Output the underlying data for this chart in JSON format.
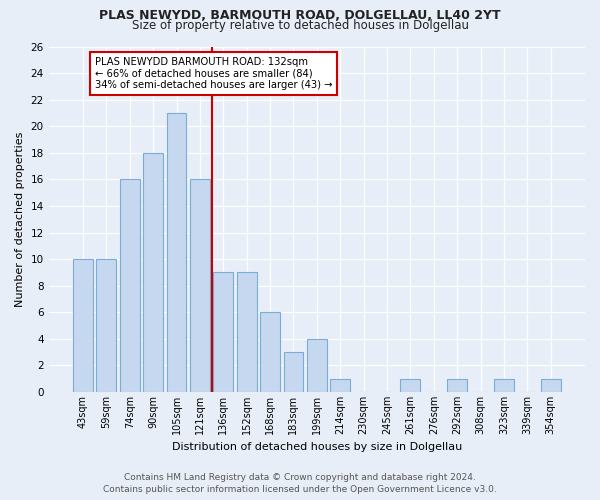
{
  "title1": "PLAS NEWYDD, BARMOUTH ROAD, DOLGELLAU, LL40 2YT",
  "title2": "Size of property relative to detached houses in Dolgellau",
  "xlabel": "Distribution of detached houses by size in Dolgellau",
  "ylabel": "Number of detached properties",
  "categories": [
    "43sqm",
    "59sqm",
    "74sqm",
    "90sqm",
    "105sqm",
    "121sqm",
    "136sqm",
    "152sqm",
    "168sqm",
    "183sqm",
    "199sqm",
    "214sqm",
    "230sqm",
    "245sqm",
    "261sqm",
    "276sqm",
    "292sqm",
    "308sqm",
    "323sqm",
    "339sqm",
    "354sqm"
  ],
  "values": [
    10,
    10,
    16,
    18,
    21,
    16,
    9,
    9,
    6,
    3,
    4,
    1,
    0,
    0,
    1,
    0,
    1,
    0,
    1,
    0,
    1
  ],
  "bar_color": "#c5d8f0",
  "bar_edge_color": "#7aadd4",
  "vline_x": 5.5,
  "vline_color": "#cc0000",
  "annotation_title": "PLAS NEWYDD BARMOUTH ROAD: 132sqm",
  "annotation_line2": "← 66% of detached houses are smaller (84)",
  "annotation_line3": "34% of semi-detached houses are larger (43) →",
  "annotation_box_color": "#ffffff",
  "annotation_border_color": "#cc0000",
  "ylim": [
    0,
    26
  ],
  "yticks": [
    0,
    2,
    4,
    6,
    8,
    10,
    12,
    14,
    16,
    18,
    20,
    22,
    24,
    26
  ],
  "footer1": "Contains HM Land Registry data © Crown copyright and database right 2024.",
  "footer2": "Contains public sector information licensed under the Open Government Licence v3.0.",
  "bg_color": "#e8eef8",
  "title1_fontsize": 9,
  "title2_fontsize": 8.5,
  "xlabel_fontsize": 8,
  "ylabel_fontsize": 8,
  "xtick_fontsize": 7,
  "ytick_fontsize": 7.5,
  "footer_fontsize": 6.5
}
